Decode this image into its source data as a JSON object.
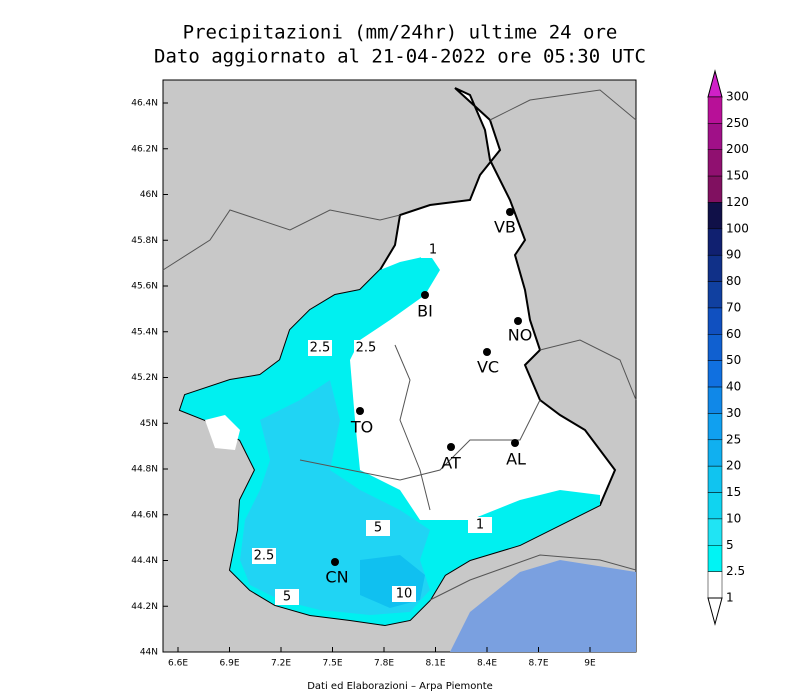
{
  "title": [
    "Precipitazioni (mm/24hr) ultime 24 ore",
    "Dato aggiornato al 21-04-2022 ore 05:30 UTC"
  ],
  "lat_labels": [
    "46.4N",
    "46.2N",
    "46N",
    "45.8N",
    "45.6N",
    "45.4N",
    "45.2N",
    "45N",
    "44.8N",
    "44.6N",
    "44.4N",
    "44.2N",
    "44N"
  ],
  "lon_labels": [
    "6.6E",
    "6.9E",
    "7.2E",
    "7.5E",
    "7.8E",
    "8.1E",
    "8.4E",
    "8.7E",
    "9E"
  ],
  "colorbar": [
    {
      "label": "300",
      "color": "#d020c8"
    },
    {
      "label": "250",
      "color": "#b81098"
    },
    {
      "label": "200",
      "color": "#a01088"
    },
    {
      "label": "150",
      "color": "#901070"
    },
    {
      "label": "120",
      "color": "#801060"
    },
    {
      "label": "100",
      "color": "#101048"
    },
    {
      "label": "90",
      "color": "#102070"
    },
    {
      "label": "80",
      "color": "#103088"
    },
    {
      "label": "70",
      "color": "#1040a0"
    },
    {
      "label": "60",
      "color": "#1050c0"
    },
    {
      "label": "50",
      "color": "#1060d0"
    },
    {
      "label": "40",
      "color": "#1070e0"
    },
    {
      "label": "30",
      "color": "#1088e8"
    },
    {
      "label": "25",
      "color": "#10a0f0"
    },
    {
      "label": "20",
      "color": "#10b0f0"
    },
    {
      "label": "15",
      "color": "#10c4f0"
    },
    {
      "label": "10",
      "color": "#10d4f0"
    },
    {
      "label": "5",
      "color": "#20e4f4"
    },
    {
      "label": "2.5",
      "color": "#00f4f4"
    },
    {
      "label": "1",
      "color": "#ffffff"
    }
  ],
  "cities": [
    "VB",
    "BI",
    "NO",
    "VC",
    "TO",
    "AT",
    "AL",
    "CN"
  ],
  "contours": [
    "1",
    "2.5",
    "2.5",
    "1",
    "5",
    "2.5",
    "5",
    "10"
  ],
  "footer": "Dati ed Elaborazioni – Arpa Piemonte"
}
